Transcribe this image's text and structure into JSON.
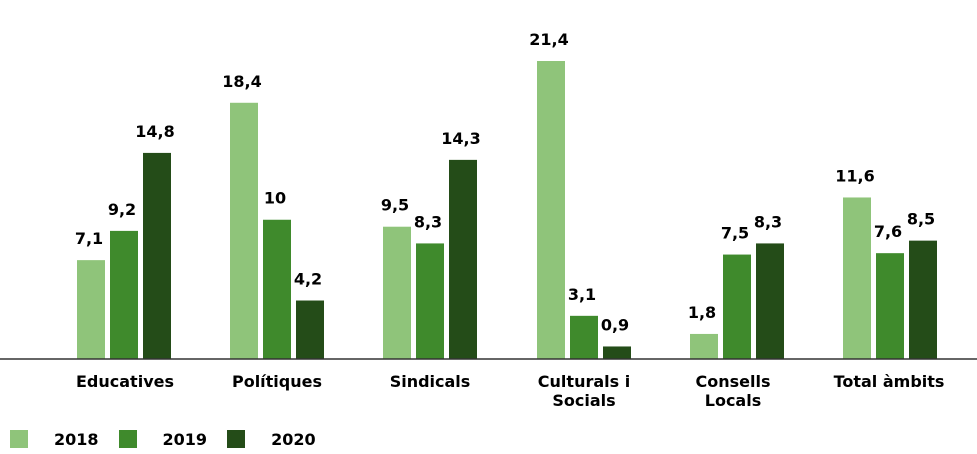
{
  "chart_data": {
    "type": "bar",
    "title": "",
    "xlabel": "",
    "ylabel": "",
    "ylim": [
      0,
      22.5
    ],
    "grid": false,
    "legend_position": "bottom-left",
    "categories": [
      "Educatives",
      "Polítiques",
      "Sindicals",
      "Culturals i Socials",
      "Consells Locals",
      "Total àmbits"
    ],
    "category_labels": [
      [
        "Educatives"
      ],
      [
        "Polítiques"
      ],
      [
        "Sindicals"
      ],
      [
        "Culturals i",
        "Socials"
      ],
      [
        "Consells",
        "Locals"
      ],
      [
        "Total àmbits"
      ]
    ],
    "series": [
      {
        "name": "2018",
        "color": "#8fc47a",
        "values": [
          7.1,
          18.4,
          9.5,
          21.4,
          1.8,
          11.6
        ],
        "labels": [
          "7,1",
          "18,4",
          "9,5",
          "21,4",
          "1,8",
          "11,6"
        ]
      },
      {
        "name": "2019",
        "color": "#3f8a2c",
        "values": [
          9.2,
          10,
          8.3,
          3.1,
          7.5,
          7.6
        ],
        "labels": [
          "9,2",
          "10",
          "8,3",
          "3,1",
          "7,5",
          "7,6"
        ]
      },
      {
        "name": "2020",
        "color": "#244c18",
        "values": [
          14.8,
          4.2,
          14.3,
          0.9,
          8.3,
          8.5
        ],
        "labels": [
          "14,8",
          "4,2",
          "14,3",
          "0,9",
          "8,3",
          "8,5"
        ]
      }
    ]
  }
}
